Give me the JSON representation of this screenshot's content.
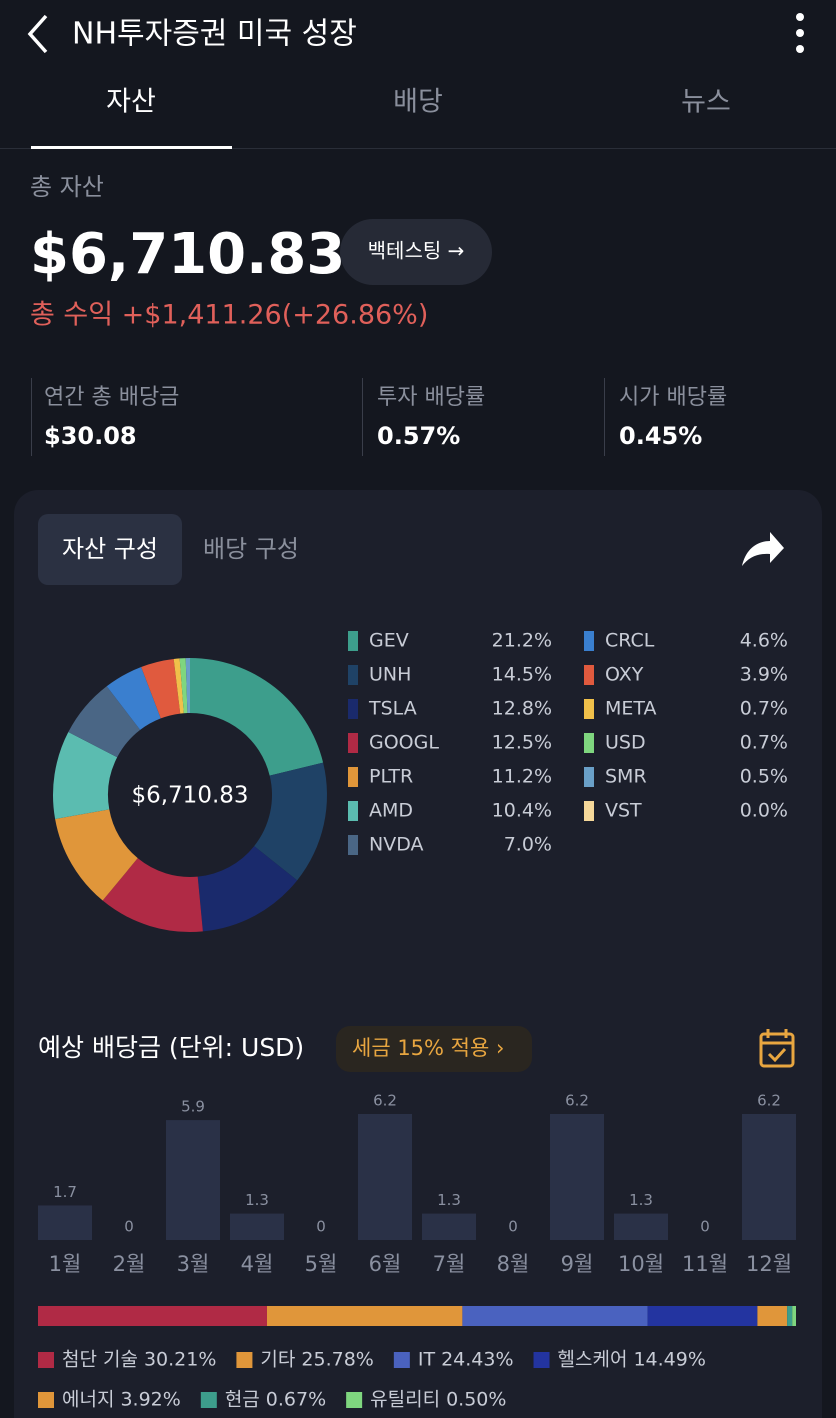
{
  "header": {
    "title": "NH투자증권 미국 성장"
  },
  "tabs": [
    "자산",
    "배당",
    "뉴스"
  ],
  "summary": {
    "label": "총 자산",
    "total": "$6,710.83",
    "button": "백테스팅 →",
    "profit": "총 수익 +$1,411.26(+26.86%)"
  },
  "stats": [
    {
      "label": "연간 총 배당금",
      "value": "$30.08"
    },
    {
      "label": "투자 배당률",
      "value": "0.57%"
    },
    {
      "label": "시가 배당률",
      "value": "0.45%"
    }
  ],
  "card_tabs": [
    "자산 구성",
    "배당 구성"
  ],
  "chart_data": [
    {
      "type": "donut",
      "center_label": "$6,710.83",
      "categories": [
        "GEV",
        "UNH",
        "TSLA",
        "GOOGL",
        "PLTR",
        "AMD",
        "NVDA",
        "CRCL",
        "OXY",
        "META",
        "USD",
        "SMR",
        "VST"
      ],
      "values": [
        21.2,
        14.5,
        12.8,
        12.5,
        11.2,
        10.4,
        7.0,
        4.6,
        3.9,
        0.7,
        0.7,
        0.5,
        0.0
      ],
      "value_labels": [
        "21.2%",
        "14.5%",
        "12.8%",
        "12.5%",
        "11.2%",
        "10.4%",
        "7.0%",
        "4.6%",
        "3.9%",
        "0.7%",
        "0.7%",
        "0.5%",
        "0.0%"
      ],
      "colors": [
        "#3d9e8c",
        "#1f4266",
        "#1a2a6c",
        "#b02a45",
        "#e0963a",
        "#5bbcb0",
        "#4a6685",
        "#3a7fcf",
        "#e05a3e",
        "#f0c04a",
        "#7fd67f",
        "#6aa0c8",
        "#f5d89a"
      ]
    },
    {
      "type": "bar",
      "title": "예상 배당금 (단위: USD)",
      "badge": "세금 15% 적용 ›",
      "categories": [
        "1월",
        "2월",
        "3월",
        "4월",
        "5월",
        "6월",
        "7월",
        "8월",
        "9월",
        "10월",
        "11월",
        "12월"
      ],
      "values": [
        1.7,
        0,
        5.9,
        1.3,
        0,
        6.2,
        1.3,
        0,
        6.2,
        1.3,
        0,
        6.2
      ],
      "color": "#2a3147"
    },
    {
      "type": "stacked-bar",
      "categories": [
        "첨단 기술",
        "기타",
        "IT",
        "헬스케어",
        "에너지",
        "현금",
        "유틸리티"
      ],
      "values": [
        30.21,
        25.78,
        24.43,
        14.49,
        3.92,
        0.67,
        0.5
      ],
      "value_labels": [
        "30.21%",
        "25.78%",
        "24.43%",
        "14.49%",
        "3.92%",
        "0.67%",
        "0.50%"
      ],
      "colors": [
        "#b02a45",
        "#e0963a",
        "#4a62bf",
        "#2334a0",
        "#e0963a",
        "#3d9e8c",
        "#7fd67f"
      ]
    }
  ]
}
